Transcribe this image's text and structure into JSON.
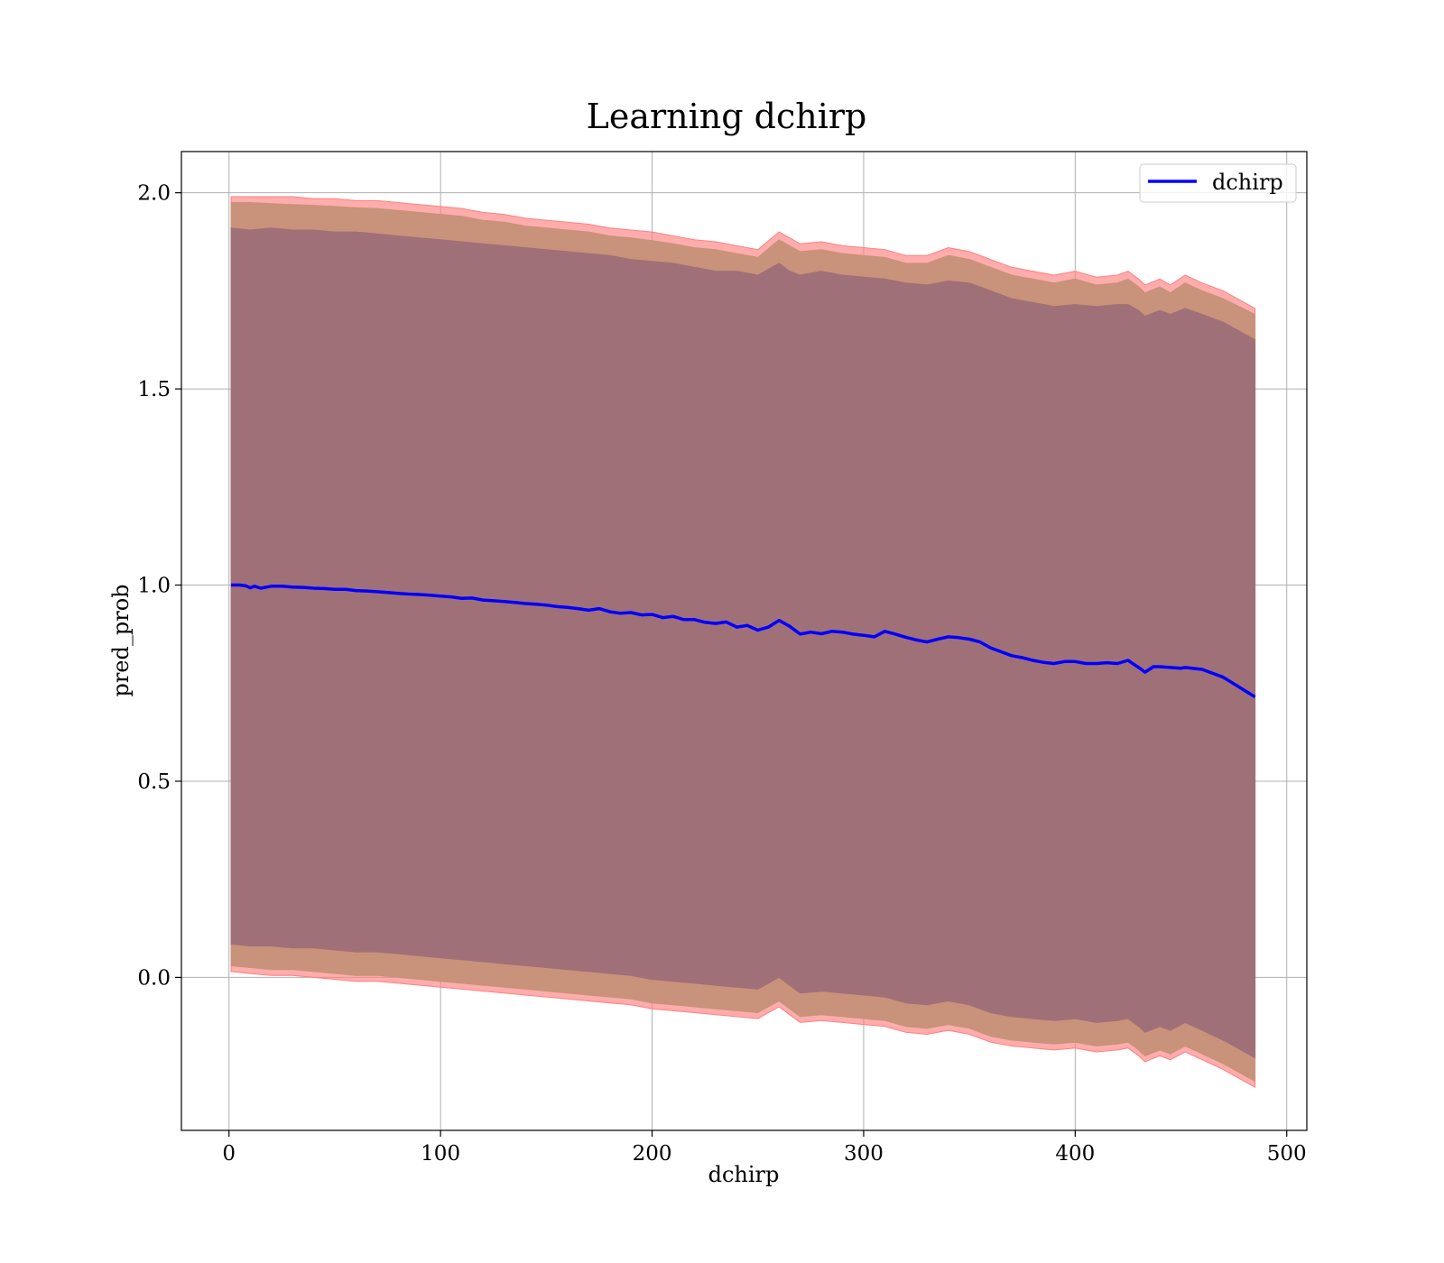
{
  "chart_data": {
    "type": "line",
    "title": "Learning dchirp",
    "xlabel": "dchirp",
    "ylabel": "pred_prob",
    "xlim": [
      -22.5,
      509.5
    ],
    "ylim": [
      -0.39,
      2.105
    ],
    "xticks": [
      0,
      100,
      200,
      300,
      400,
      500
    ],
    "xtick_labels": [
      "0",
      "100",
      "200",
      "300",
      "400",
      "500"
    ],
    "yticks": [
      0.0,
      0.5,
      1.0,
      1.5,
      2.0
    ],
    "ytick_labels": [
      "0.0",
      "0.5",
      "1.0",
      "1.5",
      "2.0"
    ],
    "grid": true,
    "legend": {
      "position": "top-right",
      "entries": [
        "dchirp"
      ]
    },
    "colors": {
      "line": "#0000ff",
      "band_outer": "#ff7f7f",
      "band_mid": "#c9927a",
      "band_inner": "#a07078"
    },
    "series": [
      {
        "name": "dchirp",
        "x": [
          1,
          5,
          8,
          10,
          12,
          15,
          20,
          25,
          30,
          35,
          40,
          45,
          50,
          55,
          60,
          65,
          70,
          75,
          80,
          85,
          90,
          95,
          100,
          105,
          110,
          115,
          120,
          125,
          130,
          135,
          140,
          145,
          150,
          155,
          160,
          165,
          170,
          175,
          180,
          185,
          190,
          195,
          200,
          205,
          210,
          215,
          220,
          225,
          230,
          235,
          240,
          245,
          250,
          255,
          260,
          265,
          270,
          275,
          280,
          285,
          290,
          295,
          300,
          305,
          310,
          315,
          320,
          325,
          330,
          335,
          340,
          345,
          350,
          355,
          360,
          365,
          370,
          375,
          380,
          385,
          390,
          395,
          400,
          405,
          410,
          415,
          420,
          425,
          430,
          433,
          437,
          440,
          445,
          450,
          452,
          460,
          470,
          485
        ],
        "y": [
          1.0,
          1.0,
          0.998,
          0.993,
          0.997,
          0.992,
          0.997,
          0.997,
          0.995,
          0.994,
          0.992,
          0.991,
          0.989,
          0.989,
          0.986,
          0.985,
          0.983,
          0.981,
          0.979,
          0.977,
          0.976,
          0.974,
          0.972,
          0.97,
          0.966,
          0.967,
          0.962,
          0.96,
          0.958,
          0.956,
          0.953,
          0.951,
          0.949,
          0.945,
          0.943,
          0.94,
          0.936,
          0.94,
          0.932,
          0.928,
          0.93,
          0.924,
          0.925,
          0.917,
          0.92,
          0.912,
          0.912,
          0.905,
          0.902,
          0.906,
          0.893,
          0.897,
          0.885,
          0.893,
          0.91,
          0.895,
          0.875,
          0.88,
          0.876,
          0.882,
          0.88,
          0.875,
          0.872,
          0.868,
          0.882,
          0.875,
          0.867,
          0.86,
          0.855,
          0.862,
          0.868,
          0.866,
          0.862,
          0.855,
          0.84,
          0.83,
          0.82,
          0.815,
          0.808,
          0.803,
          0.8,
          0.805,
          0.805,
          0.8,
          0.8,
          0.802,
          0.8,
          0.808,
          0.79,
          0.778,
          0.792,
          0.792,
          0.79,
          0.788,
          0.79,
          0.785,
          0.765,
          0.715
        ]
      }
    ],
    "bands": [
      {
        "name": "outer",
        "x": [
          1,
          10,
          20,
          30,
          40,
          50,
          60,
          70,
          80,
          90,
          100,
          110,
          120,
          130,
          140,
          150,
          160,
          170,
          180,
          190,
          200,
          210,
          220,
          230,
          240,
          250,
          260,
          265,
          270,
          280,
          290,
          300,
          310,
          320,
          330,
          340,
          350,
          360,
          370,
          380,
          390,
          400,
          410,
          420,
          425,
          430,
          433,
          440,
          445,
          452,
          460,
          470,
          485
        ],
        "upper": [
          1.99,
          1.99,
          1.99,
          1.99,
          1.985,
          1.985,
          1.98,
          1.98,
          1.975,
          1.97,
          1.965,
          1.96,
          1.95,
          1.945,
          1.935,
          1.93,
          1.925,
          1.92,
          1.91,
          1.905,
          1.9,
          1.89,
          1.88,
          1.875,
          1.865,
          1.855,
          1.9,
          1.885,
          1.87,
          1.875,
          1.865,
          1.86,
          1.855,
          1.84,
          1.84,
          1.86,
          1.85,
          1.83,
          1.81,
          1.8,
          1.79,
          1.8,
          1.785,
          1.79,
          1.8,
          1.78,
          1.765,
          1.78,
          1.765,
          1.79,
          1.77,
          1.75,
          1.705
        ],
        "lower": [
          0.015,
          0.01,
          0.005,
          0.005,
          0.0,
          -0.005,
          -0.01,
          -0.01,
          -0.015,
          -0.02,
          -0.025,
          -0.03,
          -0.035,
          -0.04,
          -0.045,
          -0.05,
          -0.055,
          -0.06,
          -0.065,
          -0.07,
          -0.08,
          -0.085,
          -0.09,
          -0.095,
          -0.1,
          -0.105,
          -0.075,
          -0.095,
          -0.115,
          -0.11,
          -0.115,
          -0.12,
          -0.125,
          -0.14,
          -0.145,
          -0.135,
          -0.145,
          -0.165,
          -0.175,
          -0.18,
          -0.185,
          -0.18,
          -0.19,
          -0.185,
          -0.18,
          -0.2,
          -0.215,
          -0.2,
          -0.21,
          -0.19,
          -0.21,
          -0.235,
          -0.28
        ]
      },
      {
        "name": "mid",
        "x": [
          1,
          10,
          20,
          30,
          40,
          50,
          60,
          70,
          80,
          90,
          100,
          110,
          120,
          130,
          140,
          150,
          160,
          170,
          180,
          190,
          200,
          210,
          220,
          230,
          240,
          250,
          260,
          265,
          270,
          280,
          290,
          300,
          310,
          320,
          330,
          340,
          350,
          360,
          370,
          380,
          390,
          400,
          410,
          420,
          425,
          430,
          433,
          440,
          445,
          452,
          460,
          470,
          485
        ],
        "upper": [
          1.975,
          1.975,
          1.972,
          1.97,
          1.968,
          1.965,
          1.962,
          1.96,
          1.955,
          1.95,
          1.945,
          1.94,
          1.93,
          1.925,
          1.915,
          1.91,
          1.905,
          1.9,
          1.89,
          1.885,
          1.878,
          1.87,
          1.86,
          1.855,
          1.845,
          1.835,
          1.88,
          1.865,
          1.85,
          1.855,
          1.845,
          1.84,
          1.835,
          1.82,
          1.82,
          1.84,
          1.83,
          1.81,
          1.79,
          1.78,
          1.77,
          1.78,
          1.765,
          1.77,
          1.78,
          1.76,
          1.745,
          1.76,
          1.745,
          1.77,
          1.75,
          1.73,
          1.69
        ],
        "lower": [
          0.03,
          0.025,
          0.02,
          0.02,
          0.015,
          0.01,
          0.005,
          0.005,
          0.0,
          -0.005,
          -0.01,
          -0.015,
          -0.02,
          -0.025,
          -0.03,
          -0.035,
          -0.04,
          -0.045,
          -0.05,
          -0.055,
          -0.065,
          -0.07,
          -0.075,
          -0.08,
          -0.085,
          -0.09,
          -0.06,
          -0.08,
          -0.1,
          -0.095,
          -0.1,
          -0.105,
          -0.11,
          -0.125,
          -0.13,
          -0.12,
          -0.13,
          -0.15,
          -0.16,
          -0.165,
          -0.17,
          -0.165,
          -0.175,
          -0.17,
          -0.165,
          -0.185,
          -0.2,
          -0.185,
          -0.195,
          -0.175,
          -0.195,
          -0.22,
          -0.265
        ]
      },
      {
        "name": "inner",
        "x": [
          1,
          10,
          20,
          30,
          40,
          50,
          60,
          70,
          80,
          90,
          100,
          110,
          120,
          130,
          140,
          150,
          160,
          170,
          180,
          190,
          200,
          210,
          220,
          230,
          240,
          250,
          260,
          265,
          270,
          280,
          290,
          300,
          310,
          320,
          330,
          340,
          350,
          360,
          370,
          380,
          390,
          400,
          410,
          420,
          425,
          430,
          433,
          440,
          445,
          452,
          460,
          470,
          485
        ],
        "upper": [
          1.91,
          1.905,
          1.91,
          1.905,
          1.905,
          1.9,
          1.9,
          1.895,
          1.89,
          1.885,
          1.88,
          1.875,
          1.87,
          1.865,
          1.86,
          1.855,
          1.85,
          1.845,
          1.84,
          1.83,
          1.825,
          1.82,
          1.81,
          1.8,
          1.8,
          1.79,
          1.82,
          1.8,
          1.79,
          1.8,
          1.79,
          1.785,
          1.78,
          1.77,
          1.765,
          1.775,
          1.77,
          1.75,
          1.73,
          1.72,
          1.71,
          1.715,
          1.71,
          1.715,
          1.715,
          1.7,
          1.685,
          1.7,
          1.69,
          1.705,
          1.69,
          1.67,
          1.625
        ],
        "lower": [
          0.085,
          0.08,
          0.08,
          0.075,
          0.075,
          0.07,
          0.065,
          0.065,
          0.06,
          0.055,
          0.05,
          0.045,
          0.04,
          0.035,
          0.03,
          0.025,
          0.02,
          0.015,
          0.01,
          0.005,
          -0.005,
          -0.01,
          -0.015,
          -0.02,
          -0.025,
          -0.03,
          0.0,
          -0.02,
          -0.04,
          -0.035,
          -0.04,
          -0.045,
          -0.05,
          -0.065,
          -0.07,
          -0.06,
          -0.07,
          -0.09,
          -0.1,
          -0.105,
          -0.11,
          -0.105,
          -0.115,
          -0.11,
          -0.105,
          -0.125,
          -0.14,
          -0.125,
          -0.135,
          -0.115,
          -0.135,
          -0.16,
          -0.205
        ]
      }
    ]
  }
}
